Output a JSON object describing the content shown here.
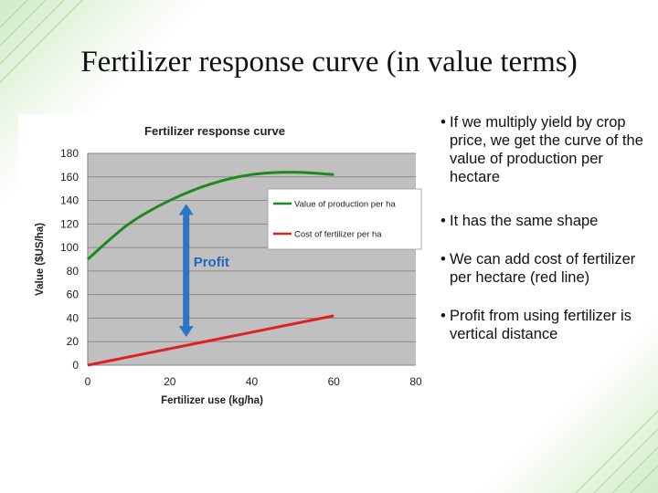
{
  "slide": {
    "title": "Fertilizer response curve (in value terms)"
  },
  "bullets": [
    "If we multiply yield by crop price, we get the curve of the value of production per hectare",
    "It has the same shape",
    "We can add cost of fertilizer per hectare (red line)",
    "Profit from using fertilizer is vertical distance"
  ],
  "colors": {
    "plot_bg": "#c0c0c0",
    "value_line": "#1e8a1e",
    "cost_line": "#e02020",
    "profit_arrow": "#2e75c8",
    "profit_label": "#2266bb"
  },
  "chart_data": {
    "type": "line",
    "title": "Fertilizer response curve",
    "xlabel": "Fertilizer use (kg/ha)",
    "ylabel": "Value ($US/ha)",
    "xlim": [
      0,
      80
    ],
    "ylim": [
      0,
      180
    ],
    "x_ticks": [
      0,
      20,
      40,
      60,
      80
    ],
    "y_ticks": [
      0,
      20,
      40,
      60,
      80,
      100,
      120,
      140,
      160,
      180
    ],
    "grid": "horizontal",
    "legend_position": "right, inside plot",
    "series": [
      {
        "name": "Value of production per ha",
        "x": [
          0,
          10,
          20,
          30,
          40,
          50,
          60
        ],
        "y": [
          90,
          120,
          140,
          154,
          162,
          164,
          162
        ]
      },
      {
        "name": "Cost of fertilizer per ha",
        "x": [
          0,
          60
        ],
        "y": [
          0,
          42
        ]
      }
    ],
    "annotations": [
      {
        "text": "Profit",
        "x": 24,
        "y_from": 24,
        "y_to": 137
      }
    ]
  }
}
